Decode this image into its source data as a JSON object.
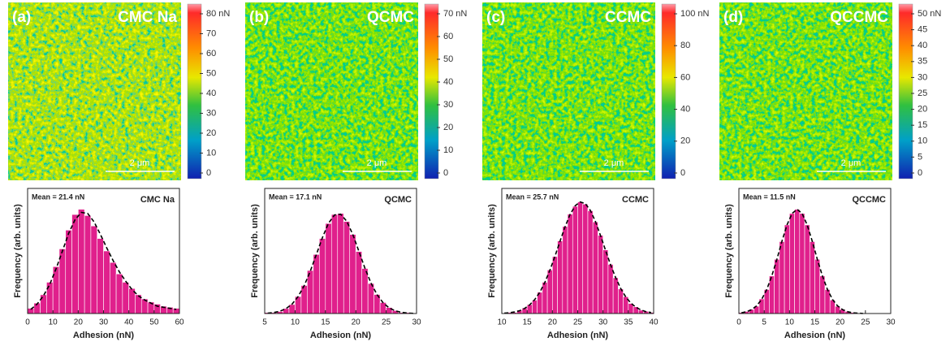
{
  "chart_data": [
    {
      "type": "heatmap",
      "label": "(a)",
      "title": "CMC Na",
      "scale_bar": "2 μm",
      "clim": [
        0,
        80
      ],
      "cticks": [
        0,
        10,
        20,
        30,
        40,
        50,
        60,
        70,
        {
          "value": 80,
          "label": "80 nN"
        }
      ]
    },
    {
      "type": "heatmap",
      "label": "(b)",
      "title": "QCMC",
      "scale_bar": "2 μm",
      "clim": [
        0,
        70
      ],
      "cticks": [
        0,
        10,
        20,
        30,
        40,
        50,
        60,
        {
          "value": 70,
          "label": "70 nN"
        }
      ]
    },
    {
      "type": "heatmap",
      "label": "(c)",
      "title": "CCMC",
      "scale_bar": "2 μm",
      "clim": [
        0,
        100
      ],
      "cticks": [
        0,
        20,
        40,
        60,
        80,
        {
          "value": 100,
          "label": "100 nN"
        }
      ]
    },
    {
      "type": "heatmap",
      "label": "(d)",
      "title": "QCCMC",
      "scale_bar": "2 μm",
      "clim": [
        0,
        50
      ],
      "cticks": [
        0,
        5,
        10,
        15,
        20,
        25,
        30,
        35,
        40,
        45,
        {
          "value": 50,
          "label": "50 nN"
        }
      ]
    },
    {
      "type": "histogram",
      "title": "CMC Na",
      "annotation": "Mean = 21.4 nN",
      "xlabel": "Adhesion (nN)",
      "ylabel": "Frequency (arb. units)",
      "color": "#e0208c",
      "bins": [
        0,
        2.5,
        5,
        7.5,
        10,
        12.5,
        15,
        17.5,
        20,
        22.5,
        25,
        27.5,
        30,
        32.5,
        35,
        37.5,
        40,
        42.5,
        45,
        47.5,
        50,
        52.5,
        55,
        57.5,
        60
      ],
      "values": [
        5,
        10,
        18,
        30,
        45,
        62,
        80,
        95,
        100,
        94,
        84,
        72,
        60,
        49,
        38,
        30,
        24,
        18,
        14,
        11,
        9,
        7,
        6,
        5
      ],
      "fit": {
        "x": [
          1.25,
          3.75,
          6.25,
          8.75,
          11.25,
          13.75,
          16.25,
          18.75,
          21.25,
          23.75,
          26.25,
          28.75,
          31.25,
          33.75,
          36.25,
          38.75,
          41.25,
          43.75,
          46.25,
          48.75,
          51.25,
          53.75,
          56.25,
          58.75
        ],
        "values": [
          4,
          9,
          17,
          28,
          43,
          60,
          77,
          90,
          97,
          96,
          88,
          76,
          63,
          51,
          40,
          31,
          23,
          17,
          13,
          10,
          7,
          6,
          5,
          4
        ]
      },
      "xlim": [
        0,
        60
      ],
      "xticks": [
        0,
        10,
        20,
        30,
        40,
        50,
        60
      ],
      "ylim": [
        0,
        120
      ]
    },
    {
      "type": "histogram",
      "title": "QCMC",
      "annotation": "Mean = 17.1 nN",
      "xlabel": "Adhesion (nN)",
      "ylabel": "Frequency (arb. units)",
      "color": "#e0208c",
      "bins": [
        5,
        6,
        7,
        8,
        9,
        10,
        11,
        12,
        13,
        14,
        15,
        16,
        17,
        18,
        19,
        20,
        21,
        22,
        23,
        24,
        25,
        26,
        27,
        28,
        29,
        30
      ],
      "values": [
        1,
        1,
        2,
        5,
        9,
        17,
        28,
        43,
        59,
        75,
        90,
        99,
        100,
        92,
        79,
        62,
        45,
        30,
        19,
        11,
        6,
        3,
        1,
        1,
        0
      ],
      "fit": {
        "x": [
          5.5,
          6.5,
          7.5,
          8.5,
          9.5,
          10.5,
          11.5,
          12.5,
          13.5,
          14.5,
          15.5,
          16.5,
          17.5,
          18.5,
          19.5,
          20.5,
          21.5,
          22.5,
          23.5,
          24.5,
          25.5,
          26.5,
          27.5,
          28.5,
          29.5
        ],
        "values": [
          0.4,
          1.0,
          2.3,
          4.9,
          9.4,
          16.9,
          27.8,
          42.2,
          58.9,
          75.9,
          90.1,
          98.5,
          99.3,
          92.3,
          79.0,
          62.4,
          45.4,
          30.4,
          18.8,
          10.7,
          5.6,
          2.7,
          1.2,
          0.5,
          0.2
        ]
      },
      "xlim": [
        5,
        30
      ],
      "xticks": [
        5,
        10,
        15,
        20,
        25,
        30
      ],
      "ylim": [
        0,
        125
      ]
    },
    {
      "type": "histogram",
      "title": "CCMC",
      "annotation": "Mean = 25.7 nN",
      "xlabel": "Adhesion (nN)",
      "ylabel": "Frequency (arb. units)",
      "color": "#e0208c",
      "bins": [
        10,
        11,
        12,
        13,
        14,
        15,
        16,
        17,
        18,
        19,
        20,
        21,
        22,
        23,
        24,
        25,
        26,
        27,
        28,
        29,
        30,
        31,
        32,
        33,
        34,
        35,
        36,
        37,
        38,
        39,
        40
      ],
      "values": [
        0,
        1,
        1,
        3,
        5,
        8,
        12,
        19,
        28,
        39,
        51,
        65,
        78,
        89,
        96,
        100,
        98,
        92,
        82,
        70,
        57,
        44,
        32,
        22,
        15,
        9,
        6,
        3,
        2,
        1
      ],
      "fit": {
        "x": [
          10.5,
          11.5,
          12.5,
          13.5,
          14.5,
          15.5,
          16.5,
          17.5,
          18.5,
          19.5,
          20.5,
          21.5,
          22.5,
          23.5,
          24.5,
          25.5,
          26.5,
          27.5,
          28.5,
          29.5,
          30.5,
          31.5,
          32.5,
          33.5,
          34.5,
          35.5,
          36.5,
          37.5,
          38.5,
          39.5
        ],
        "values": [
          0.3,
          0.7,
          1.4,
          2.5,
          4.5,
          7.7,
          12.4,
          19.0,
          27.8,
          38.7,
          51.3,
          64.7,
          77.6,
          88.7,
          96.5,
          99.9,
          98.4,
          92.3,
          82.4,
          70.0,
          56.6,
          43.6,
          32.0,
          22.3,
          14.8,
          9.3,
          5.6,
          3.2,
          1.7,
          0.9
        ]
      },
      "xlim": [
        10,
        40
      ],
      "xticks": [
        10,
        15,
        20,
        25,
        30,
        35,
        40
      ],
      "ylim": [
        0,
        112
      ]
    },
    {
      "type": "histogram",
      "title": "QCCMC",
      "annotation": "Mean = 11.5 nN",
      "xlabel": "Adhesion (nN)",
      "ylabel": "Frequency (arb. units)",
      "color": "#e0208c",
      "bins": [
        0,
        1,
        2,
        3,
        4,
        5,
        6,
        7,
        8,
        9,
        10,
        11,
        12,
        13,
        14,
        15,
        16,
        17,
        18,
        19,
        20,
        21,
        22,
        23,
        24,
        25
      ],
      "values": [
        1,
        2,
        4,
        7,
        14,
        23,
        36,
        52,
        69,
        85,
        96,
        100,
        96,
        85,
        69,
        52,
        36,
        23,
        13,
        7,
        4,
        2,
        1,
        0,
        0
      ],
      "fit": {
        "x": [
          0.5,
          1.5,
          2.5,
          3.5,
          4.5,
          5.5,
          6.5,
          7.5,
          8.5,
          9.5,
          10.5,
          11.5,
          12.5,
          13.5,
          14.5,
          15.5,
          16.5,
          17.5,
          18.5,
          19.5,
          20.5,
          21.5,
          22.5,
          23.5,
          24.5
        ],
        "values": [
          0.7,
          1.7,
          3.7,
          7.3,
          13.5,
          23.0,
          36.0,
          52.0,
          69.3,
          84.9,
          96.0,
          100,
          96.0,
          84.9,
          69.3,
          52.0,
          36.0,
          23.0,
          13.5,
          7.3,
          3.7,
          1.7,
          0.7,
          0.3,
          0.1
        ]
      },
      "xlim": [
        0,
        30
      ],
      "xticks": [
        0,
        5,
        10,
        15,
        20,
        25,
        30
      ],
      "ylim": [
        0,
        120
      ]
    }
  ]
}
